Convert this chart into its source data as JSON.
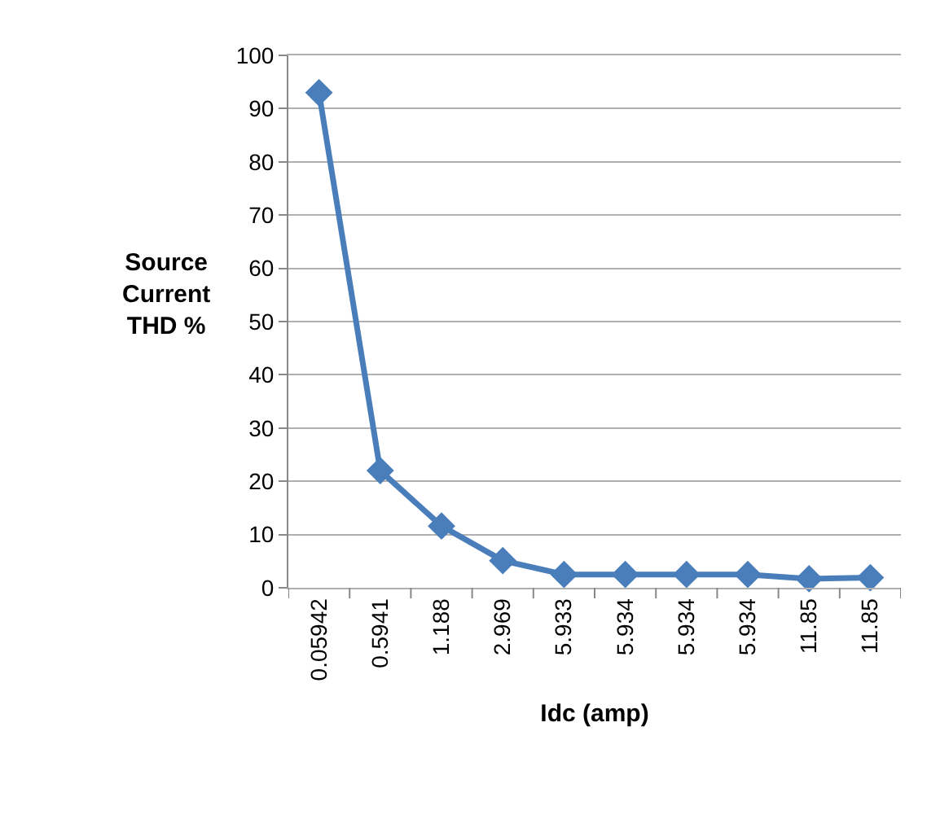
{
  "chart_data": {
    "type": "line",
    "xlabel": "Idc (amp)",
    "ylabel": "Source\nCurrent\nTHD %",
    "categories": [
      "0.05942",
      "0.5941",
      "1.188",
      "2.969",
      "5.933",
      "5.934",
      "5.934",
      "5.934",
      "11.85",
      "11.85"
    ],
    "series": [
      {
        "color": "#4a7ebb",
        "values": [
          93,
          22,
          11.6,
          5.1,
          2.5,
          2.5,
          2.5,
          2.5,
          1.7,
          1.9
        ]
      }
    ],
    "ylim": [
      0,
      100
    ],
    "yticks": [
      0,
      10,
      20,
      30,
      40,
      50,
      60,
      70,
      80,
      90,
      100
    ],
    "grid": "y",
    "legend": false,
    "marker": "diamond",
    "line_style": "solid"
  }
}
